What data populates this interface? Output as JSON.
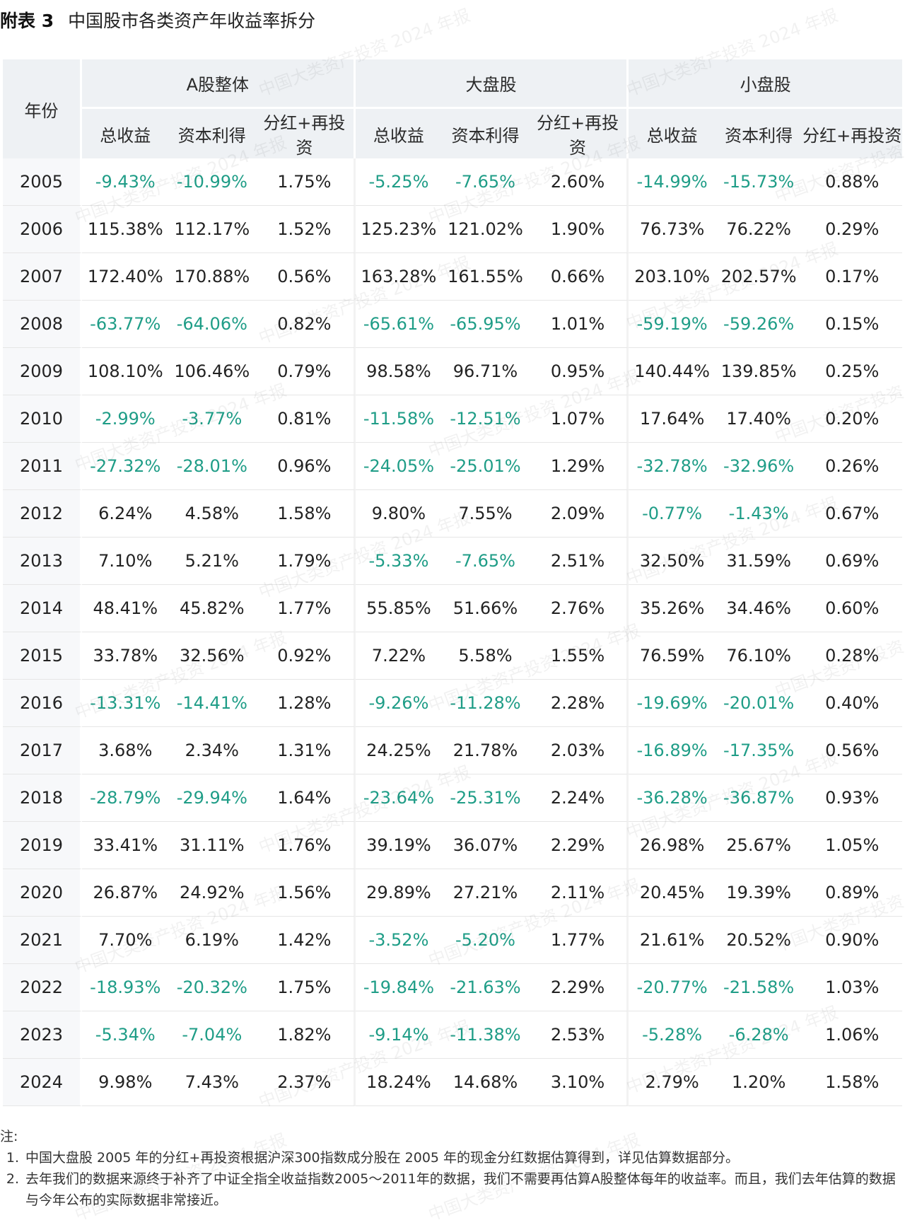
{
  "title": {
    "label": "附表 3",
    "text": "中国股市各类资产年收益率拆分"
  },
  "watermark": "中国大类资产投资 2024 年报",
  "table": {
    "year_header": "年份",
    "groups": [
      "A股整体",
      "大盘股",
      "小盘股"
    ],
    "subheaders": [
      "总收益",
      "资本利得",
      "分红+再投资"
    ],
    "rows": [
      {
        "year": "2005",
        "cells": [
          "-9.43%",
          "-10.99%",
          "1.75%",
          "-5.25%",
          "-7.65%",
          "2.60%",
          "-14.99%",
          "-15.73%",
          "0.88%"
        ]
      },
      {
        "year": "2006",
        "cells": [
          "115.38%",
          "112.17%",
          "1.52%",
          "125.23%",
          "121.02%",
          "1.90%",
          "76.73%",
          "76.22%",
          "0.29%"
        ]
      },
      {
        "year": "2007",
        "cells": [
          "172.40%",
          "170.88%",
          "0.56%",
          "163.28%",
          "161.55%",
          "0.66%",
          "203.10%",
          "202.57%",
          "0.17%"
        ]
      },
      {
        "year": "2008",
        "cells": [
          "-63.77%",
          "-64.06%",
          "0.82%",
          "-65.61%",
          "-65.95%",
          "1.01%",
          "-59.19%",
          "-59.26%",
          "0.15%"
        ]
      },
      {
        "year": "2009",
        "cells": [
          "108.10%",
          "106.46%",
          "0.79%",
          "98.58%",
          "96.71%",
          "0.95%",
          "140.44%",
          "139.85%",
          "0.25%"
        ]
      },
      {
        "year": "2010",
        "cells": [
          "-2.99%",
          "-3.77%",
          "0.81%",
          "-11.58%",
          "-12.51%",
          "1.07%",
          "17.64%",
          "17.40%",
          "0.20%"
        ]
      },
      {
        "year": "2011",
        "cells": [
          "-27.32%",
          "-28.01%",
          "0.96%",
          "-24.05%",
          "-25.01%",
          "1.29%",
          "-32.78%",
          "-32.96%",
          "0.26%"
        ]
      },
      {
        "year": "2012",
        "cells": [
          "6.24%",
          "4.58%",
          "1.58%",
          "9.80%",
          "7.55%",
          "2.09%",
          "-0.77%",
          "-1.43%",
          "0.67%"
        ]
      },
      {
        "year": "2013",
        "cells": [
          "7.10%",
          "5.21%",
          "1.79%",
          "-5.33%",
          "-7.65%",
          "2.51%",
          "32.50%",
          "31.59%",
          "0.69%"
        ]
      },
      {
        "year": "2014",
        "cells": [
          "48.41%",
          "45.82%",
          "1.77%",
          "55.85%",
          "51.66%",
          "2.76%",
          "35.26%",
          "34.46%",
          "0.60%"
        ]
      },
      {
        "year": "2015",
        "cells": [
          "33.78%",
          "32.56%",
          "0.92%",
          "7.22%",
          "5.58%",
          "1.55%",
          "76.59%",
          "76.10%",
          "0.28%"
        ]
      },
      {
        "year": "2016",
        "cells": [
          "-13.31%",
          "-14.41%",
          "1.28%",
          "-9.26%",
          "-11.28%",
          "2.28%",
          "-19.69%",
          "-20.01%",
          "0.40%"
        ]
      },
      {
        "year": "2017",
        "cells": [
          "3.68%",
          "2.34%",
          "1.31%",
          "24.25%",
          "21.78%",
          "2.03%",
          "-16.89%",
          "-17.35%",
          "0.56%"
        ]
      },
      {
        "year": "2018",
        "cells": [
          "-28.79%",
          "-29.94%",
          "1.64%",
          "-23.64%",
          "-25.31%",
          "2.24%",
          "-36.28%",
          "-36.87%",
          "0.93%"
        ]
      },
      {
        "year": "2019",
        "cells": [
          "33.41%",
          "31.11%",
          "1.76%",
          "39.19%",
          "36.07%",
          "2.29%",
          "26.98%",
          "25.67%",
          "1.05%"
        ]
      },
      {
        "year": "2020",
        "cells": [
          "26.87%",
          "24.92%",
          "1.56%",
          "29.89%",
          "27.21%",
          "2.11%",
          "20.45%",
          "19.39%",
          "0.89%"
        ]
      },
      {
        "year": "2021",
        "cells": [
          "7.70%",
          "6.19%",
          "1.42%",
          "-3.52%",
          "-5.20%",
          "1.77%",
          "21.61%",
          "20.52%",
          "0.90%"
        ]
      },
      {
        "year": "2022",
        "cells": [
          "-18.93%",
          "-20.32%",
          "1.75%",
          "-19.84%",
          "-21.63%",
          "2.29%",
          "-20.77%",
          "-21.58%",
          "1.03%"
        ]
      },
      {
        "year": "2023",
        "cells": [
          "-5.34%",
          "-7.04%",
          "1.82%",
          "-9.14%",
          "-11.38%",
          "2.53%",
          "-5.28%",
          "-6.28%",
          "1.06%"
        ]
      },
      {
        "year": "2024",
        "cells": [
          "9.98%",
          "7.43%",
          "2.37%",
          "18.24%",
          "14.68%",
          "3.10%",
          "2.79%",
          "1.20%",
          "1.58%"
        ]
      }
    ]
  },
  "notes": {
    "heading": "注:",
    "items": [
      {
        "num": "1.",
        "text": "中国大盘股 2005 年的分红+再投资根据沪深300指数成分股在 2005 年的现金分红数据估算得到，详见估算数据部分。"
      },
      {
        "num": "2.",
        "text": "去年我们的数据来源终于补齐了中证全指全收益指数2005～2011年的数据，我们不需要再估算A股整体每年的收益率。而且，我们去年估算的数据与今年公布的实际数据非常接近。"
      }
    ]
  },
  "colors": {
    "negative": "#1f9d87",
    "header_bg": "#eef1f4",
    "year_bg": "#f7f8fa"
  }
}
